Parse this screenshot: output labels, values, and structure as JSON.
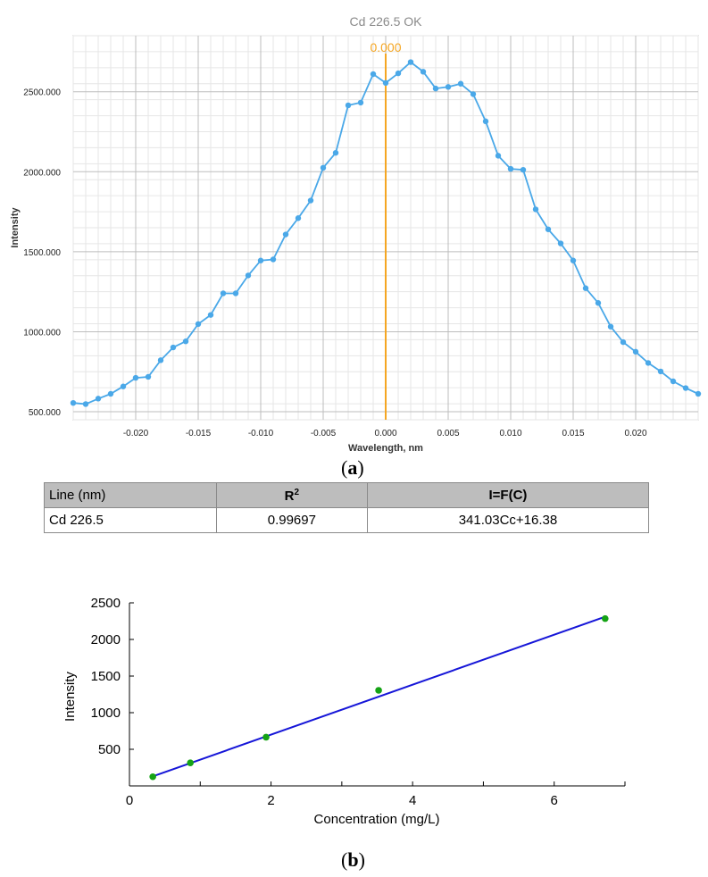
{
  "panel_a": {
    "label": "a"
  },
  "panel_b": {
    "label": "b"
  },
  "table": {
    "headers": [
      "Line (nm)",
      "R",
      "I=F(C)"
    ],
    "r_sup": "2",
    "rows": [
      [
        "Cd 226.5",
        "0.99697",
        "341.03Cc+16.38"
      ]
    ]
  },
  "chart_data": [
    {
      "type": "line",
      "title": "Cd 226.5 OK",
      "xlabel": "Wavelength, nm",
      "ylabel": "Intensity",
      "xlim": [
        -0.025,
        0.025
      ],
      "ylim": [
        450,
        2850
      ],
      "x_ticks": [
        -0.02,
        -0.015,
        -0.01,
        -0.005,
        0.0,
        0.005,
        0.01,
        0.015,
        0.02
      ],
      "x_tick_labels": [
        "-0.020",
        "-0.015",
        "-0.010",
        "-0.005",
        "0.000",
        "0.005",
        "0.010",
        "0.015",
        "0.020"
      ],
      "y_ticks": [
        500,
        1000,
        1500,
        2000,
        2500
      ],
      "y_tick_labels": [
        "500.000",
        "1000.000",
        "1500.000",
        "2000.000",
        "2500.000"
      ],
      "grid": true,
      "marker": {
        "x": 0.0,
        "label": "0.000",
        "color": "#f5a623"
      },
      "line_color": "#4aa8e8",
      "series": [
        {
          "x": [
            -0.025,
            -0.024,
            -0.023,
            -0.022,
            -0.021,
            -0.02,
            -0.019,
            -0.018,
            -0.017,
            -0.016,
            -0.015,
            -0.014,
            -0.013,
            -0.012,
            -0.011,
            -0.01,
            -0.009,
            -0.008,
            -0.007,
            -0.006,
            -0.005,
            -0.004,
            -0.003,
            -0.002,
            -0.001,
            0.0,
            0.001,
            0.002,
            0.003,
            0.004,
            0.005,
            0.006,
            0.007,
            0.008,
            0.009,
            0.01,
            0.011,
            0.012,
            0.013,
            0.014,
            0.015,
            0.016,
            0.017,
            0.018,
            0.019,
            0.02,
            0.021,
            0.022,
            0.023,
            0.024,
            0.025
          ],
          "values": [
            555,
            548,
            582,
            612,
            658,
            712,
            718,
            822,
            902,
            940,
            1048,
            1105,
            1240,
            1240,
            1352,
            1445,
            1452,
            1608,
            1710,
            1820,
            2025,
            2118,
            2415,
            2432,
            2610,
            2555,
            2615,
            2685,
            2625,
            2520,
            2530,
            2550,
            2485,
            2315,
            2100,
            2018,
            2012,
            1765,
            1640,
            1552,
            1445,
            1272,
            1180,
            1032,
            935,
            875,
            805,
            752,
            690,
            648,
            612
          ]
        }
      ]
    },
    {
      "type": "scatter",
      "xlabel": "Concentration (mg/L)",
      "ylabel": "Intensity",
      "xlim": [
        0,
        7
      ],
      "ylim": [
        0,
        2500
      ],
      "x_ticks": [
        0,
        2,
        4,
        6
      ],
      "y_ticks": [
        500,
        1000,
        1500,
        2000,
        2500
      ],
      "points": {
        "x": [
          0.33,
          0.86,
          1.93,
          3.52,
          6.72
        ],
        "values": [
          125,
          315,
          665,
          1305,
          2285
        ],
        "color": "#15a315"
      },
      "fit_line": {
        "x": [
          0.33,
          6.72
        ],
        "values": [
          130,
          2310
        ],
        "color": "#1616d8"
      }
    }
  ]
}
